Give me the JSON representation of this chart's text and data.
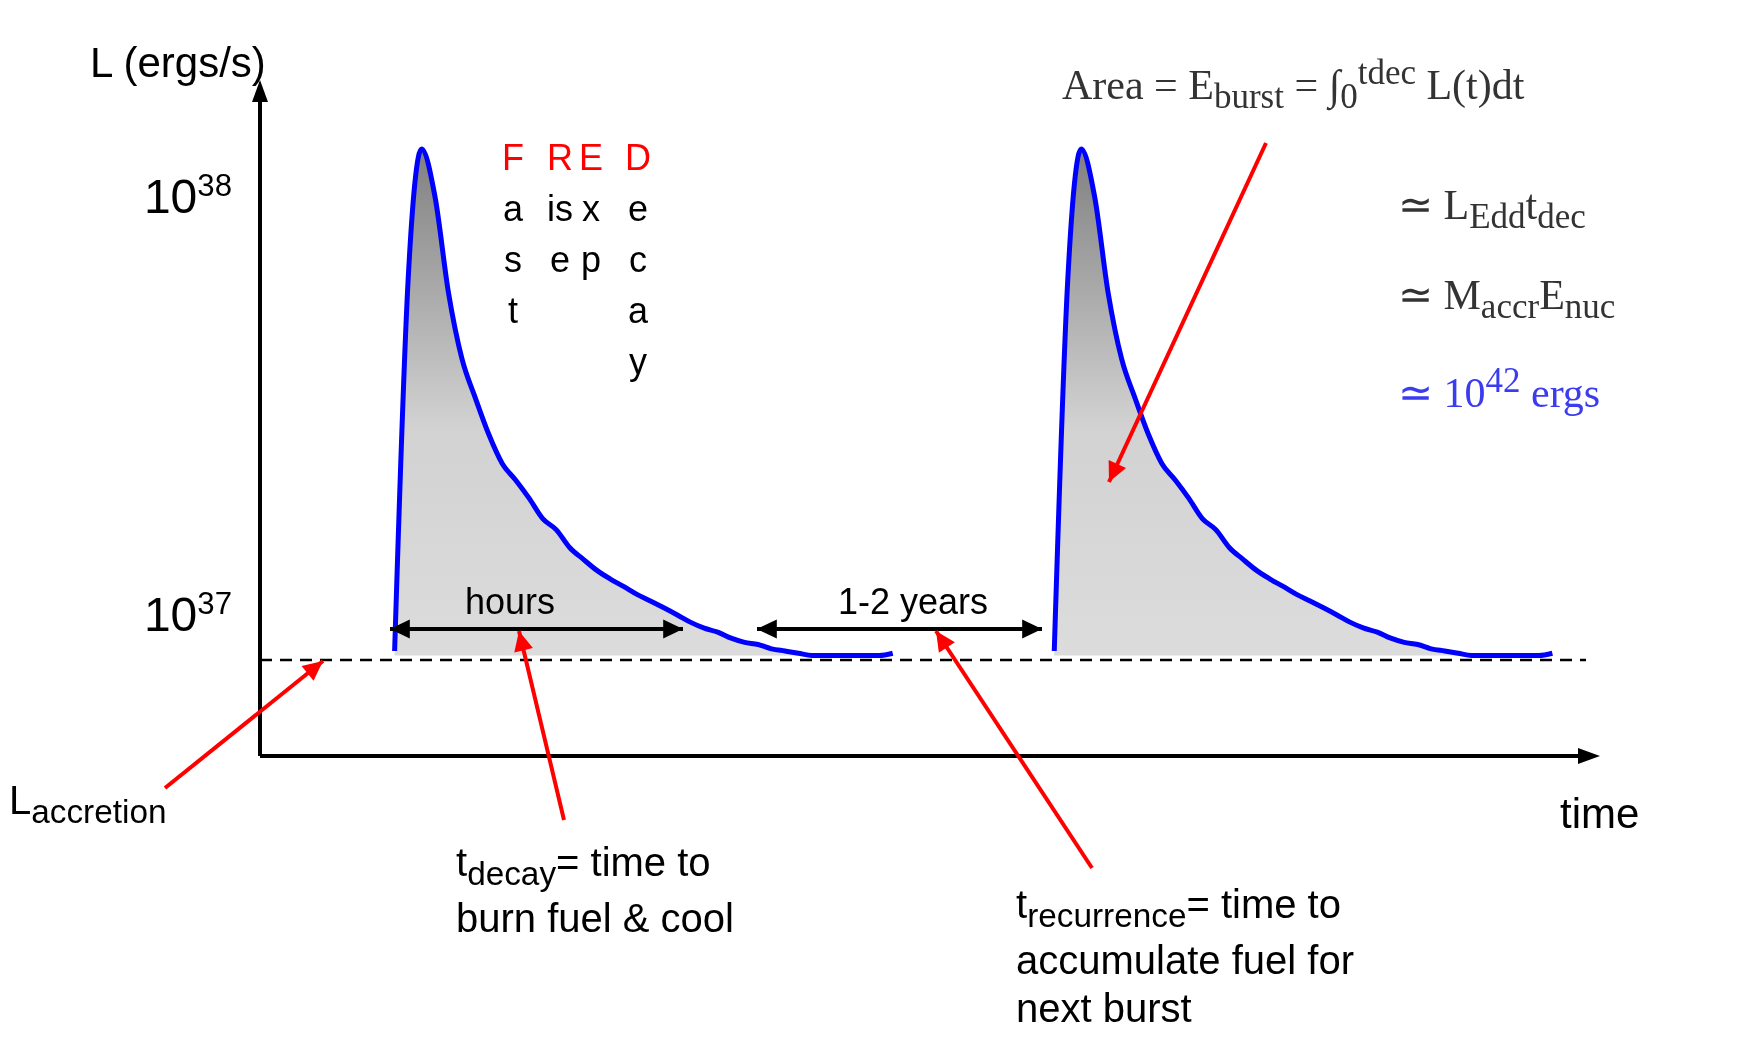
{
  "chart_data": {
    "type": "area",
    "ylabel": "L (ergs/s)",
    "xlabel": "time",
    "categories": [
      null,
      null,
      null,
      null,
      null,
      null,
      null,
      null,
      null,
      null,
      null,
      null,
      null,
      null,
      null,
      null,
      null,
      null,
      null,
      null,
      null,
      null,
      null,
      null,
      null,
      null,
      null,
      null,
      null,
      null,
      null,
      null,
      null,
      null,
      null,
      null,
      null,
      null,
      null,
      null,
      null,
      null,
      null,
      null,
      null,
      null,
      null,
      null,
      null,
      null,
      null,
      null,
      null,
      null,
      null,
      null,
      null,
      null,
      null,
      null,
      null,
      null,
      null,
      null,
      null,
      null,
      null,
      null,
      null,
      null,
      null,
      null,
      null,
      null,
      null,
      null,
      null,
      null,
      null,
      null,
      null,
      null,
      null,
      null,
      null,
      null,
      null,
      null,
      null,
      null,
      null,
      null,
      null,
      null,
      null,
      null,
      null,
      null,
      null
    ],
    "series": [
      {
        "color": "#0000ff",
        "values": [
          null,
          null,
          null,
          null,
          null,
          null,
          null,
          null,
          null,
          null,
          8.2e+36,
          6.3e+37,
          1.3e+38,
          1e+38,
          5.9e+37,
          4.1e+37,
          3.3e+37,
          2.7e+37,
          2.3e+37,
          2.1e+37,
          1.9e+37,
          1.7e+37,
          1.6e+37,
          1.45e+37,
          1.36e+37,
          1.28e+37,
          1.22e+37,
          1.17e+37,
          1.12e+37,
          1.08e+37,
          1.04e+37,
          1e+37,
          9.6e+36,
          9.3e+36,
          9.1e+36,
          8.8e+36,
          8.6e+36,
          8.5e+36,
          8.3e+36,
          8.2e+36,
          8.1e+36,
          8e+36,
          8e+36,
          8e+36,
          8e+36,
          8e+36,
          8e+36,
          8.1e+36,
          null,
          null,
          null,
          null,
          null,
          null,
          null,
          null,
          null,
          null,
          null,
          8.2e+36,
          6.3e+37,
          1.3e+38,
          1e+38,
          5.9e+37,
          4.1e+37,
          3.3e+37,
          2.7e+37,
          2.3e+37,
          2.1e+37,
          1.9e+37,
          1.7e+37,
          1.6e+37,
          1.45e+37,
          1.36e+37,
          1.28e+37,
          1.22e+37,
          1.17e+37,
          1.12e+37,
          1.08e+37,
          1.04e+37,
          1e+37,
          9.6e+36,
          9.3e+36,
          9.1e+36,
          8.8e+36,
          8.6e+36,
          8.5e+36,
          8.3e+36,
          8.2e+36,
          8.1e+36,
          8e+36,
          8e+36,
          8e+36,
          8e+36,
          8e+36,
          8e+36,
          8.1e+36,
          null,
          null
        ]
      }
    ],
    "log": "y",
    "ylim": [
      4.6e+36,
      1.8e+38
    ],
    "yticks": [
      {
        "value": 1e+37,
        "label": "10$^{37}$"
      },
      {
        "value": 1e+38,
        "label": "10$^{38}$"
      }
    ],
    "tick_labels": "y",
    "ref_lines": [
      {
        "axis": "y",
        "value": 7.8e+36,
        "label": "L$_{accretion}$",
        "color": "#000000",
        "line_style": "dashed"
      }
    ],
    "annotations": [
      "Fast Rise Exp Decay",
      "hours",
      "1-2 years",
      "t$_{decay}$= time to burn fuel & cool",
      "t$_{recurrence}$= time to accumulate fuel for next burst",
      "Area = E$_{burst}$ = ∫$_{0}$$^{tdec}$ L(t)dt",
      "≃ L$_{Edd}$t$_{dec}$",
      "≃ M$_{accr}$E$_{nuc}$",
      "≃ 10$^{42}$ ergs"
    ]
  }
}
